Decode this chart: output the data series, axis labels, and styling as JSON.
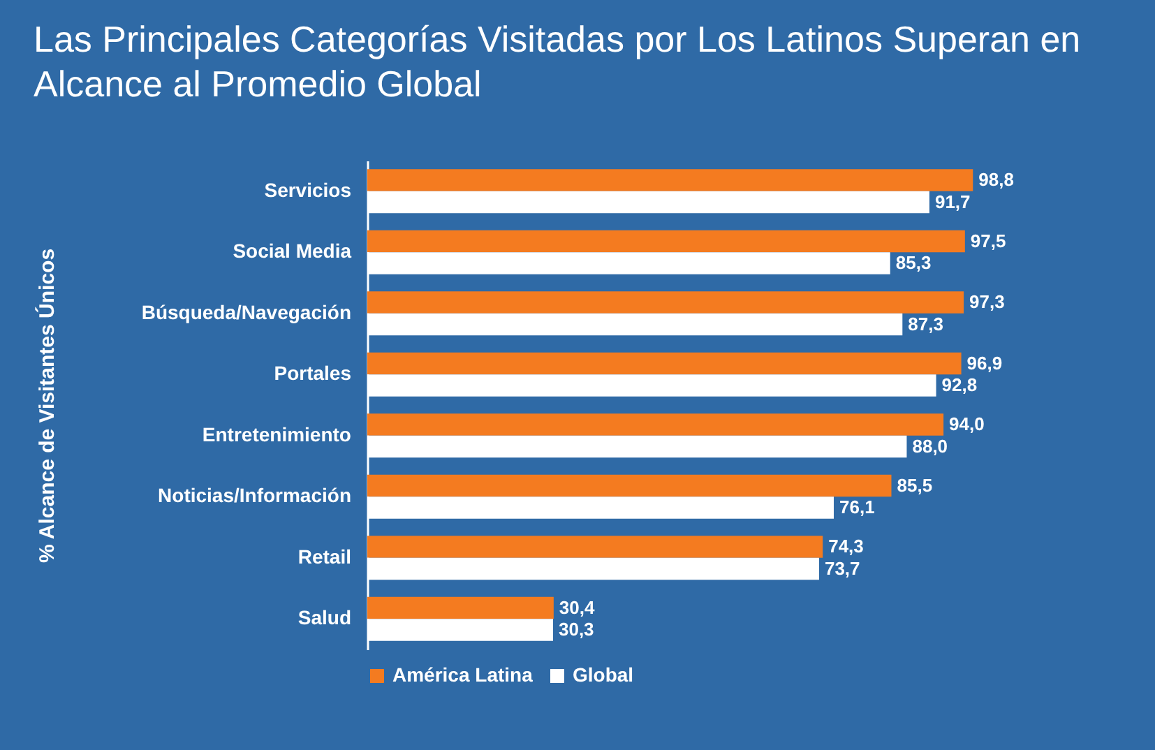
{
  "chart_data": {
    "type": "bar",
    "orientation": "horizontal",
    "title": "Las Principales Categorías Visitadas por Los Latinos Superan en Alcance al Promedio Global",
    "ylabel": "% Alcance de Visitantes Únicos",
    "categories": [
      "Servicios",
      "Social Media",
      "Búsqueda/Navegación",
      "Portales",
      "Entretenimiento",
      "Noticias/Información",
      "Retail",
      "Salud"
    ],
    "series": [
      {
        "name": "América Latina",
        "color": "#f47b20",
        "values": [
          98.8,
          97.5,
          97.3,
          96.9,
          94.0,
          85.5,
          74.3,
          30.4
        ],
        "value_labels": [
          "98,8",
          "97,5",
          "97,3",
          "96,9",
          "94,0",
          "85,5",
          "74,3",
          "30,4"
        ]
      },
      {
        "name": "Global",
        "color": "#ffffff",
        "values": [
          91.7,
          85.3,
          87.3,
          92.8,
          88.0,
          76.1,
          73.7,
          30.3
        ],
        "value_labels": [
          "91,7",
          "85,3",
          "87,3",
          "92,8",
          "88,0",
          "76,1",
          "73,7",
          "30,3"
        ]
      }
    ],
    "legend": "bottom",
    "grid": false
  }
}
